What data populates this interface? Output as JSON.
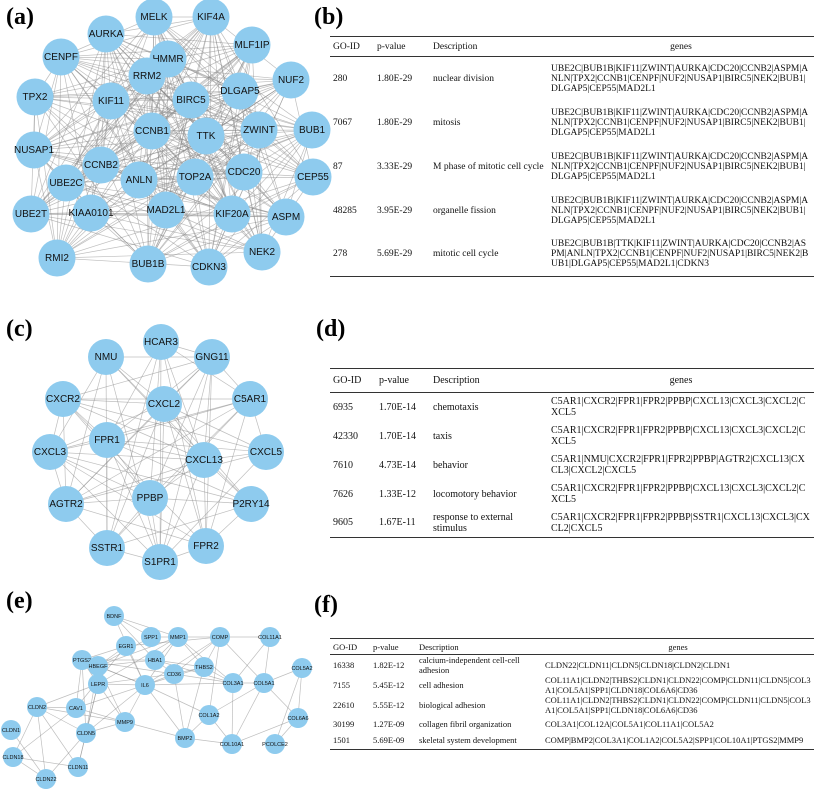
{
  "panels": {
    "a": "(a)",
    "b": "(b)",
    "c": "(c)",
    "d": "(d)",
    "e": "(e)",
    "f": "(f)"
  },
  "table_headers": [
    "GO-ID",
    "p-value",
    "Description",
    "genes"
  ],
  "networks": {
    "a": {
      "nodes": [
        "MELK",
        "KIF4A",
        "AURKA",
        "MLF1IP",
        "CENPF",
        "HMMR",
        "RRM2",
        "NUF2",
        "TPX2",
        "DLGAP5",
        "KIF11",
        "BIRC5",
        "BUB1",
        "NUSAP1",
        "CCNB1",
        "TTK",
        "ZWINT",
        "CCNB2",
        "CEP55",
        "UBE2C",
        "ANLN",
        "TOP2A",
        "CDC20",
        "UBE2T",
        "KIAA0101",
        "MAD2L1",
        "KIF20A",
        "ASPM",
        "RMI2",
        "NEK2",
        "BUB1B",
        "CDKN3"
      ]
    },
    "c": {
      "nodes": [
        "HCAR3",
        "NMU",
        "GNG11",
        "CXCR2",
        "CXCL2",
        "C5AR1",
        "FPR1",
        "CXCL3",
        "CXCL13",
        "CXCL5",
        "PPBP",
        "AGTR2",
        "P2RY14",
        "SSTR1",
        "FPR2",
        "S1PR1"
      ]
    },
    "e": {
      "nodes": [
        "BDNF",
        "SPP1",
        "MMP1",
        "EGR1",
        "PTGS2",
        "HBEGF",
        "HBA1",
        "LEPR",
        "IL6",
        "CD36",
        "COMP",
        "COL11A1",
        "THBS2",
        "COL5A2",
        "COL3A1",
        "COL5A1",
        "COL6A6",
        "COL1A2",
        "BMP2",
        "COL10A1",
        "PCOLCE2",
        "CAV1",
        "MMP9",
        "CLDN2",
        "CLDN1",
        "CLDN5",
        "CLDN18",
        "CLDN11",
        "CLDN22"
      ]
    }
  },
  "tables": {
    "b": [
      {
        "id": "280",
        "p": "1.80E-29",
        "desc": "nuclear division",
        "genes": "UBE2C|BUB1B|KIF11|ZWINT|AURKA|CDC20|CCNB2|ASPM|ANLN|TPX2|CCNB1|CENPF|NUF2|NUSAP1|BIRC5|NEK2|BUB1|DLGAP5|CEP55|MAD2L1"
      },
      {
        "id": "7067",
        "p": "1.80E-29",
        "desc": "mitosis",
        "genes": "UBE2C|BUB1B|KIF11|ZWINT|AURKA|CDC20|CCNB2|ASPM|ANLN|TPX2|CCNB1|CENPF|NUF2|NUSAP1|BIRC5|NEK2|BUB1|DLGAP5|CEP55|MAD2L1"
      },
      {
        "id": "87",
        "p": "3.33E-29",
        "desc": "M phase of mitotic cell cycle",
        "genes": "UBE2C|BUB1B|KIF11|ZWINT|AURKA|CDC20|CCNB2|ASPM|ANLN|TPX2|CCNB1|CENPF|NUF2|NUSAP1|BIRC5|NEK2|BUB1|DLGAP5|CEP55|MAD2L1"
      },
      {
        "id": "48285",
        "p": "3.95E-29",
        "desc": "organelle fission",
        "genes": "UBE2C|BUB1B|KIF11|ZWINT|AURKA|CDC20|CCNB2|ASPM|ANLN|TPX2|CCNB1|CENPF|NUF2|NUSAP1|BIRC5|NEK2|BUB1|DLGAP5|CEP55|MAD2L1"
      },
      {
        "id": "278",
        "p": "5.69E-29",
        "desc": "mitotic cell cycle",
        "genes": "UBE2C|BUB1B|TTK|KIF11|ZWINT|AURKA|CDC20|CCNB2|ASPM|ANLN|TPX2|CCNB1|CENPF|NUF2|NUSAP1|BIRC5|NEK2|BUB1|DLGAP5|CEP55|MAD2L1|CDKN3"
      }
    ],
    "d": [
      {
        "id": "6935",
        "p": "1.70E-14",
        "desc": "chemotaxis",
        "genes": "C5AR1|CXCR2|FPR1|FPR2|PPBP|CXCL13|CXCL3|CXCL2|CXCL5"
      },
      {
        "id": "42330",
        "p": "1.70E-14",
        "desc": "taxis",
        "genes": "C5AR1|CXCR2|FPR1|FPR2|PPBP|CXCL13|CXCL3|CXCL2|CXCL5"
      },
      {
        "id": "7610",
        "p": "4.73E-14",
        "desc": "behavior",
        "genes": "C5AR1|NMU|CXCR2|FPR1|FPR2|PPBP|AGTR2|CXCL13|CXCL3|CXCL2|CXCL5"
      },
      {
        "id": "7626",
        "p": "1.33E-12",
        "desc": "locomotory behavior",
        "genes": "C5AR1|CXCR2|FPR1|FPR2|PPBP|CXCL13|CXCL3|CXCL2|CXCL5"
      },
      {
        "id": "9605",
        "p": "1.67E-11",
        "desc": "response to external stimulus",
        "genes": "C5AR1|CXCR2|FPR1|FPR2|PPBP|SSTR1|CXCL13|CXCL3|CXCL2|CXCL5"
      }
    ],
    "f": [
      {
        "id": "16338",
        "p": "1.82E-12",
        "desc": "calcium-independent cell-cell adhesion",
        "genes": "CLDN22|CLDN11|CLDN5|CLDN18|CLDN2|CLDN1"
      },
      {
        "id": "7155",
        "p": "5.45E-12",
        "desc": "cell adhesion",
        "genes": "COL11A1|CLDN2|THBS2|CLDN1|CLDN22|COMP|CLDN11|CLDN5|COL3A1|COL5A1|SPP1|CLDN18|COL6A6|CD36"
      },
      {
        "id": "22610",
        "p": "5.55E-12",
        "desc": "biological adhesion",
        "genes": "COL11A1|CLDN2|THBS2|CLDN1|CLDN22|COMP|CLDN11|CLDN5|COL3A1|COL5A1|SPP1|CLDN18|COL6A6|CD36"
      },
      {
        "id": "30199",
        "p": "1.27E-09",
        "desc": "collagen fibril organization",
        "genes": "COL3A1|COL12A|COL5A1|COL11A1|COL5A2"
      },
      {
        "id": "1501",
        "p": "5.69E-09",
        "desc": "skeletal system development",
        "genes": "COMP|BMP2|COL3A1|COL1A2|COL5A2|SPP1|COL10A1|PTGS2|MMP9"
      }
    ]
  }
}
